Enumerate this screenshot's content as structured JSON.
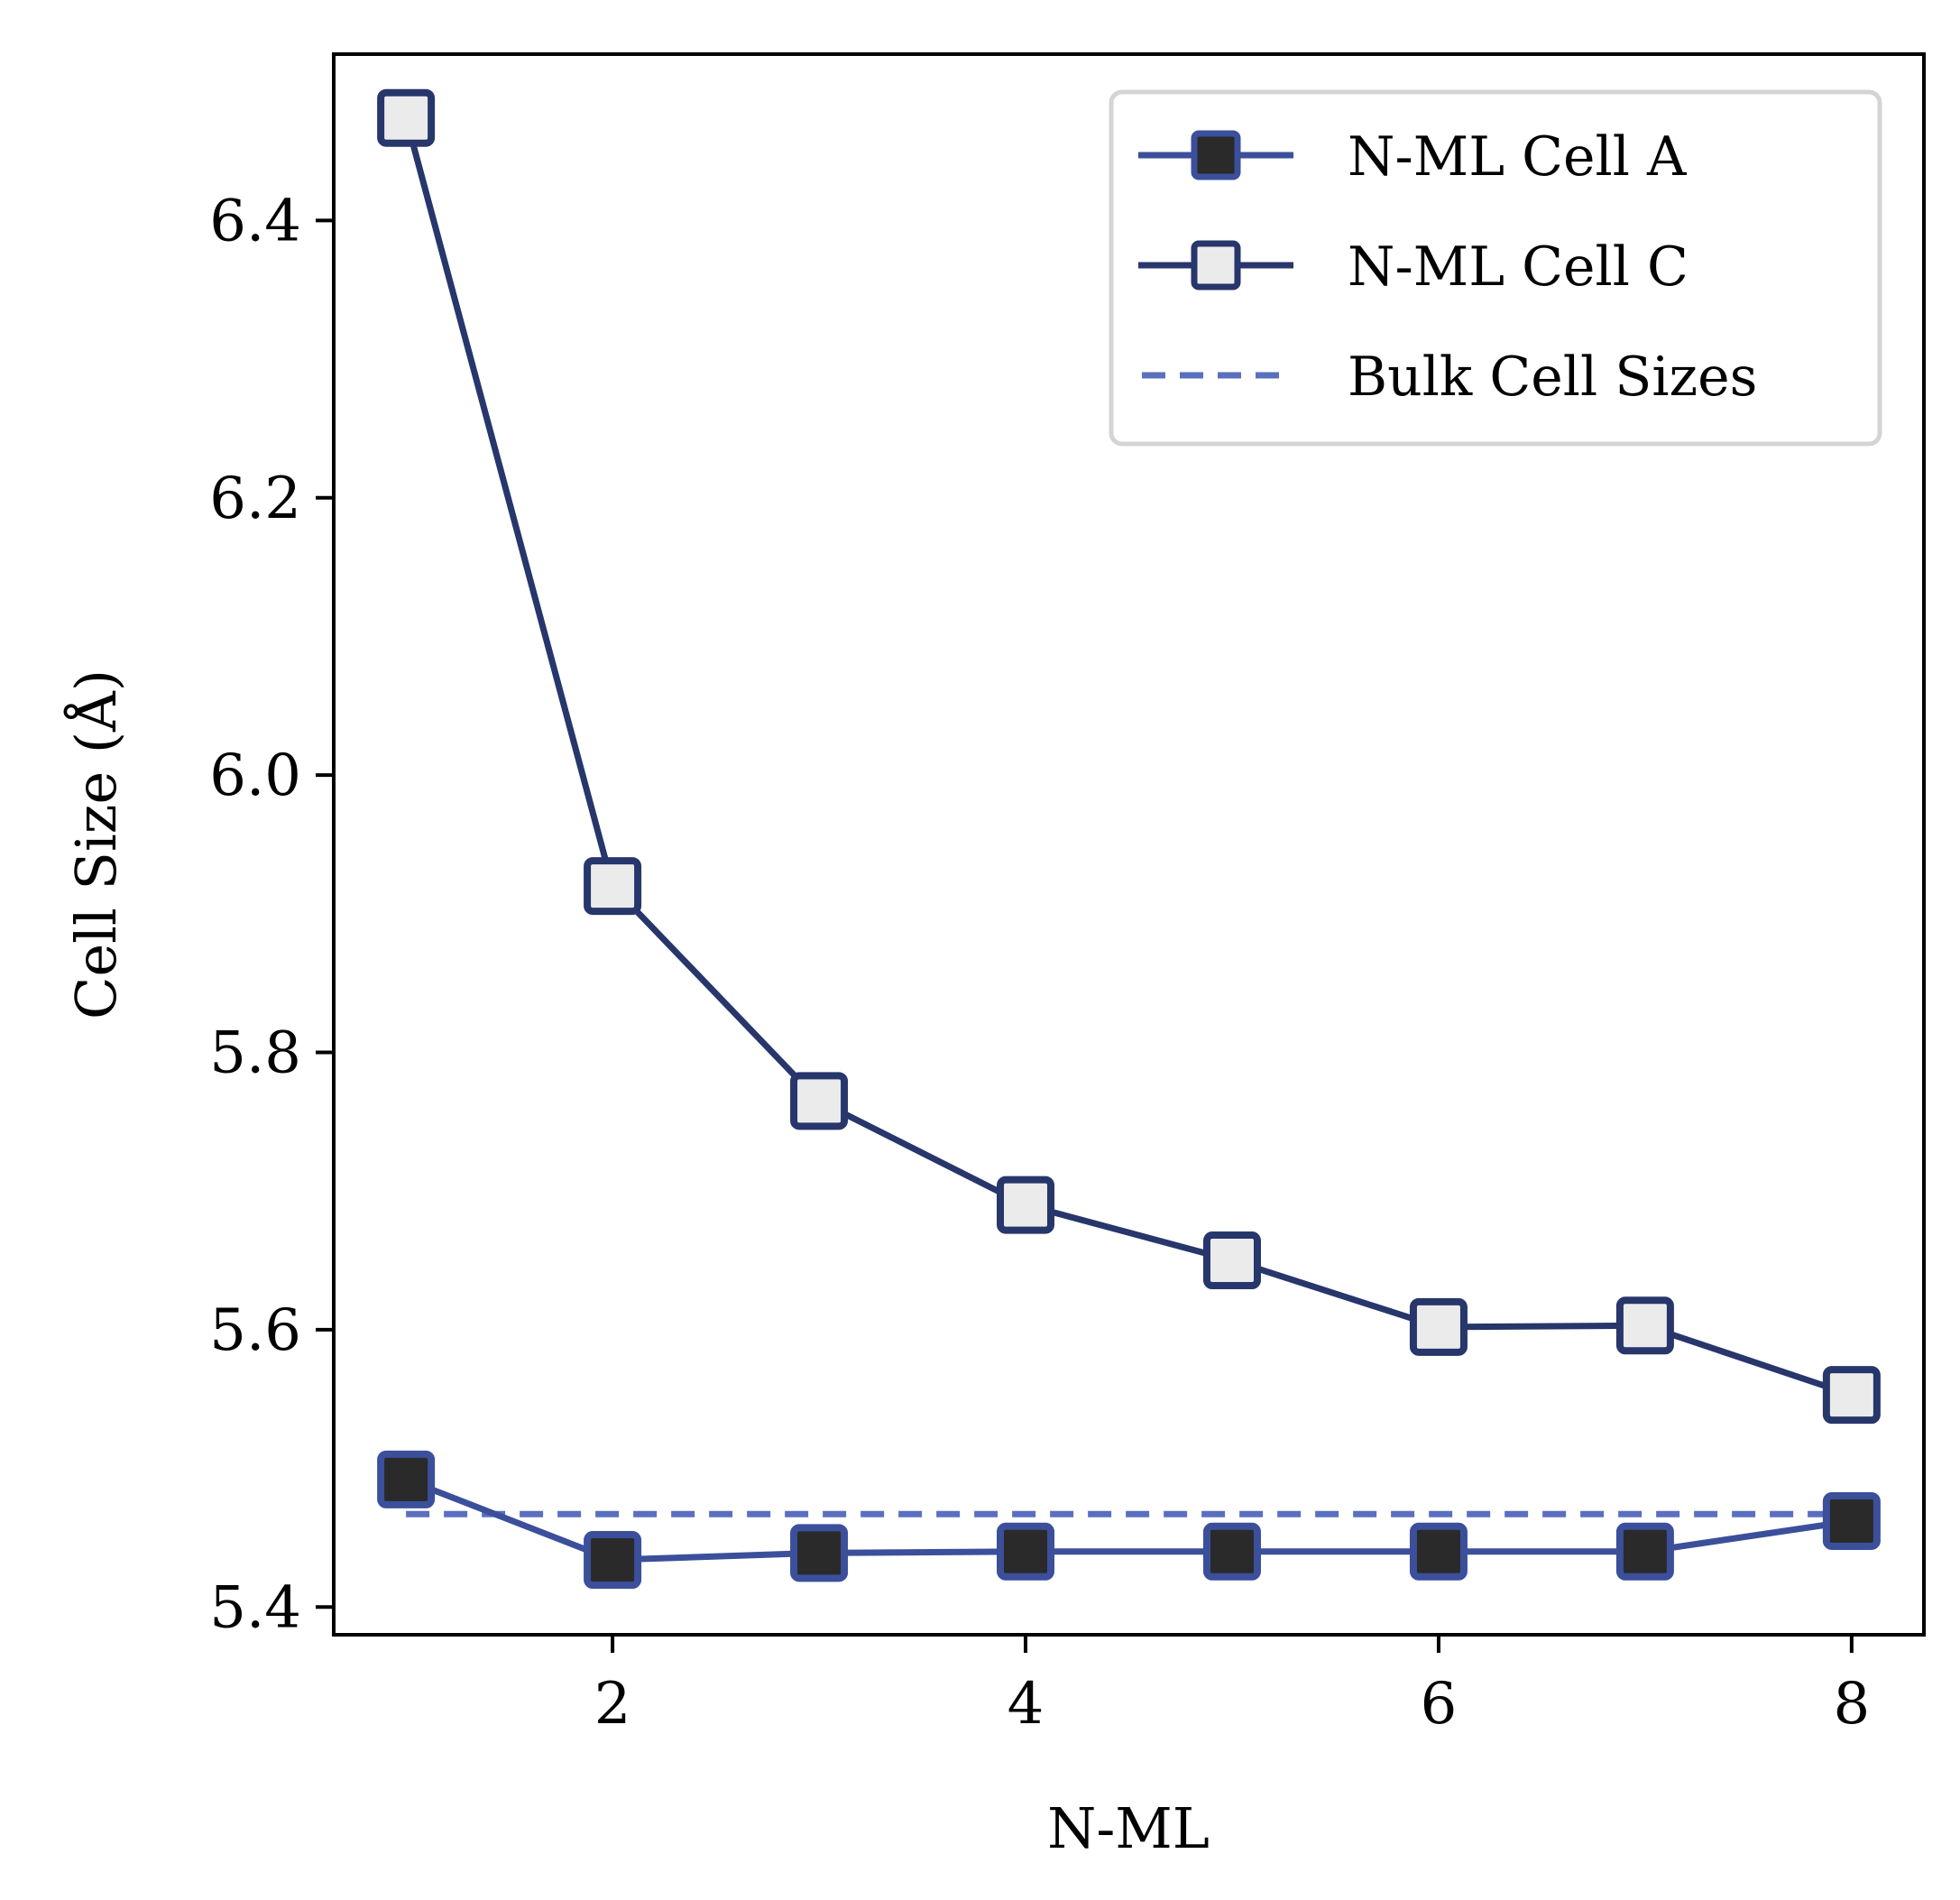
{
  "chart_data": {
    "type": "line",
    "xlabel": "N-ML",
    "ylabel": "Cell Size (Å)",
    "xlim": [
      0.65,
      8.35
    ],
    "ylim": [
      5.38,
      6.52
    ],
    "xticks": [
      2,
      4,
      6,
      8
    ],
    "yticks": [
      5.4,
      5.6,
      5.8,
      6.0,
      6.2,
      6.4
    ],
    "ytick_labels": [
      "5.4",
      "5.6",
      "5.8",
      "6.0",
      "6.2",
      "6.4"
    ],
    "grid": false,
    "legend_position": "top-right",
    "series": [
      {
        "name": "N-ML Cell A",
        "x": [
          1,
          2,
          3,
          4,
          5,
          6,
          7,
          8
        ],
        "values": [
          5.492,
          5.434,
          5.439,
          5.44,
          5.44,
          5.44,
          5.44,
          5.462
        ],
        "line_color": "#3b4f9b",
        "marker": "square",
        "marker_fill": "#2a2a2a",
        "marker_edge": "#3b4f9b"
      },
      {
        "name": "N-ML Cell C",
        "x": [
          1,
          2,
          3,
          4,
          5,
          6,
          7,
          8
        ],
        "values": [
          6.474,
          5.92,
          5.765,
          5.69,
          5.65,
          5.602,
          5.603,
          5.553
        ],
        "line_color": "#27366b",
        "marker": "square",
        "marker_fill": "#ebebeb",
        "marker_edge": "#27366b"
      }
    ],
    "reference_lines": [
      {
        "name": "Bulk Cell Sizes",
        "x": [
          1,
          8
        ],
        "values": [
          5.467,
          5.467
        ],
        "line_color": "#5b6fbf",
        "style": "dashed"
      }
    ]
  }
}
